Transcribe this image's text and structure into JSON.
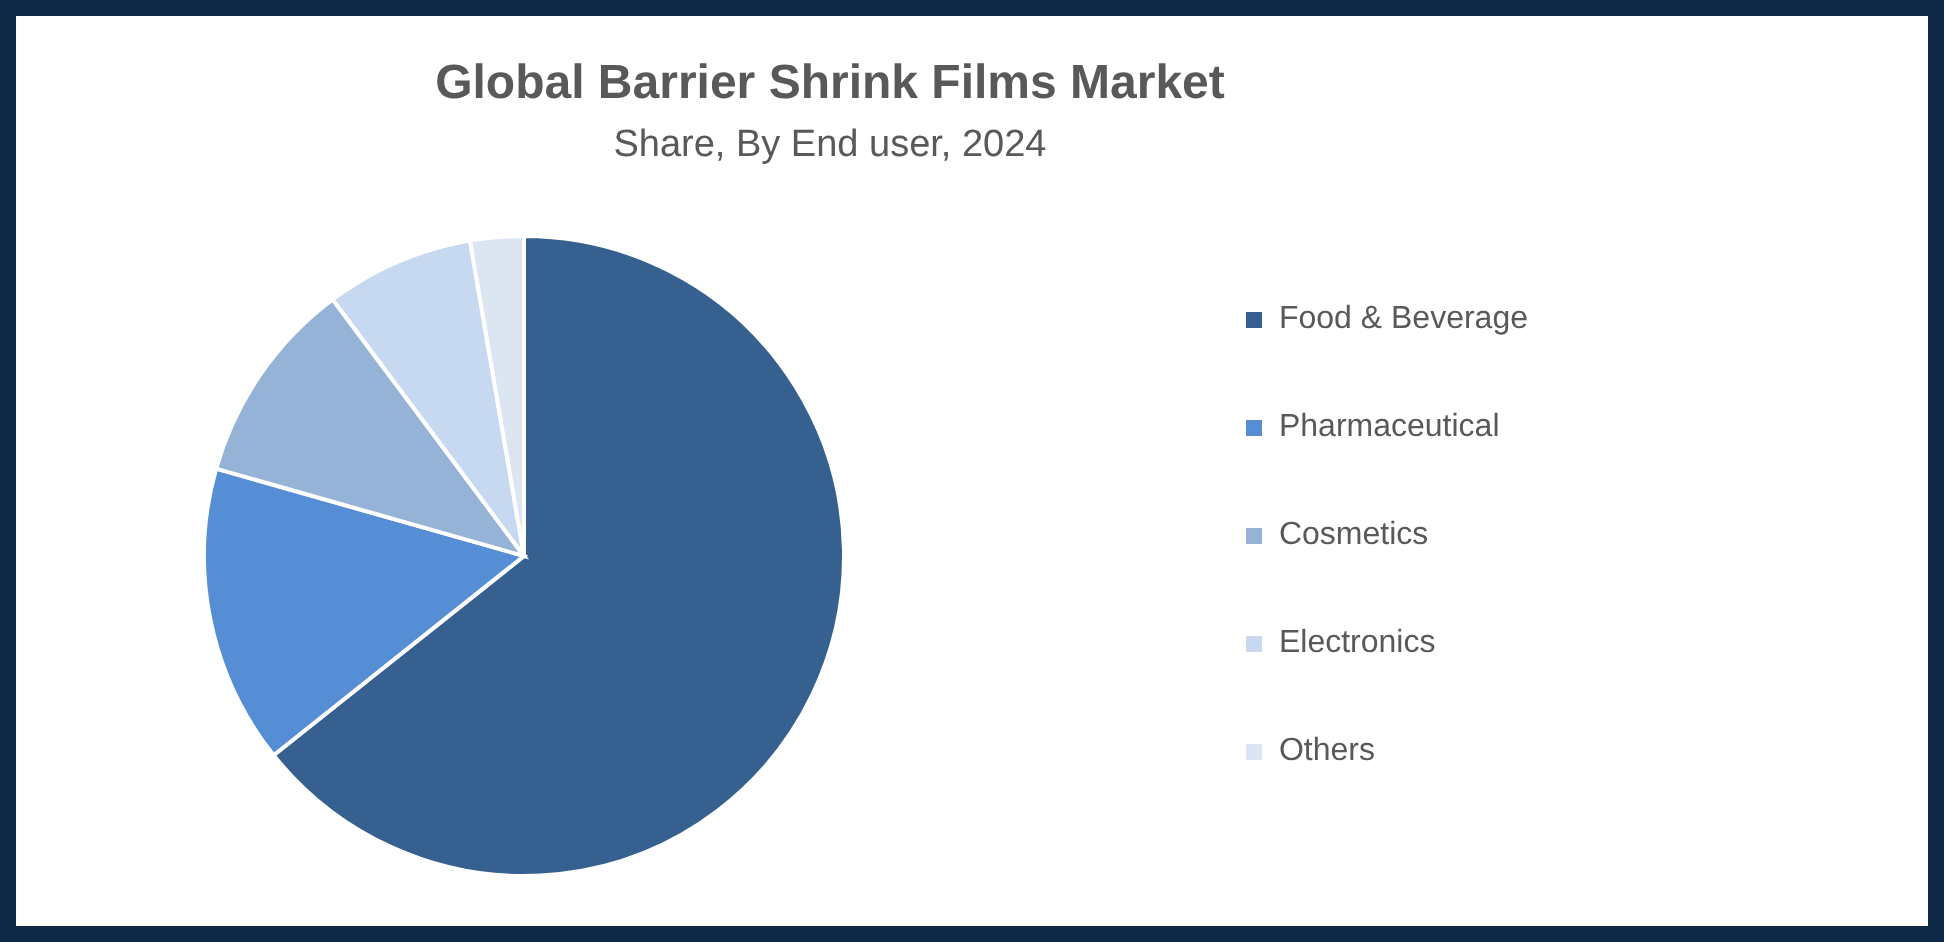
{
  "chart_data": {
    "type": "pie",
    "title": "Global Barrier Shrink Films Market",
    "subtitle": "Share, By End user, 2024",
    "categories": [
      "Food & Beverage",
      "Pharmaceutical",
      "Cosmetics",
      "Electronics",
      "Others"
    ],
    "values": [
      64.3,
      15.1,
      10.4,
      7.5,
      2.7
    ],
    "colors": [
      "#36608f",
      "#558ed5",
      "#95b3d7",
      "#c6d9f1",
      "#dce6f2"
    ],
    "legend": "right"
  }
}
